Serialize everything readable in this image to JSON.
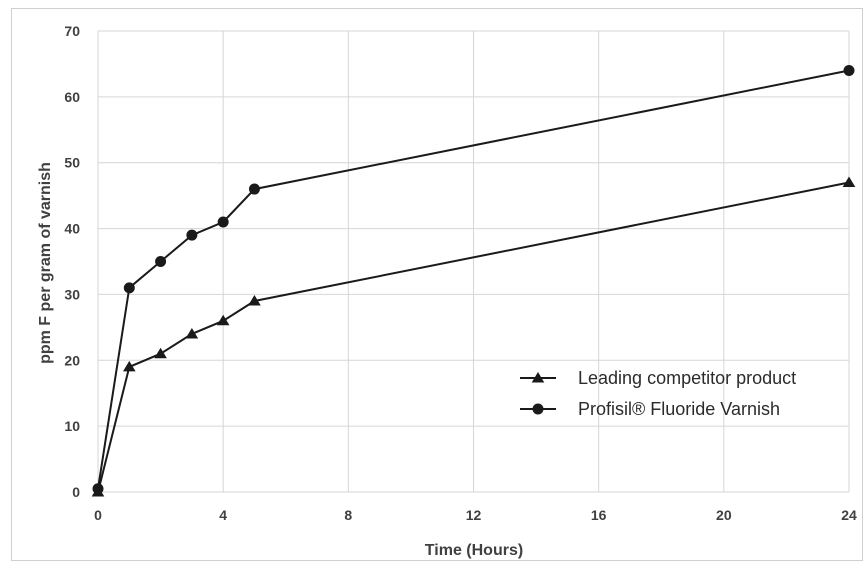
{
  "chart_data": {
    "type": "line",
    "title": "",
    "xlabel": "Time (Hours)",
    "ylabel": "ppm F per gram of varnish",
    "xlim": [
      0,
      24
    ],
    "ylim": [
      0,
      70
    ],
    "xticks": [
      0,
      4,
      8,
      12,
      16,
      20,
      24
    ],
    "yticks": [
      0,
      10,
      20,
      30,
      40,
      50,
      60,
      70
    ],
    "grid": true,
    "legend_position": "bottom-right",
    "series": [
      {
        "name": "Leading competitor product",
        "marker": "triangle",
        "color": "#1a1a1a",
        "x": [
          0,
          1,
          2,
          3,
          4,
          5,
          24
        ],
        "y": [
          0,
          19,
          21,
          24,
          26,
          29,
          47
        ]
      },
      {
        "name": "Profisil® Fluoride Varnish",
        "marker": "circle",
        "color": "#1a1a1a",
        "x": [
          0,
          1,
          2,
          3,
          4,
          5,
          24
        ],
        "y": [
          0.5,
          31,
          35,
          39,
          41,
          46,
          64
        ]
      }
    ]
  }
}
